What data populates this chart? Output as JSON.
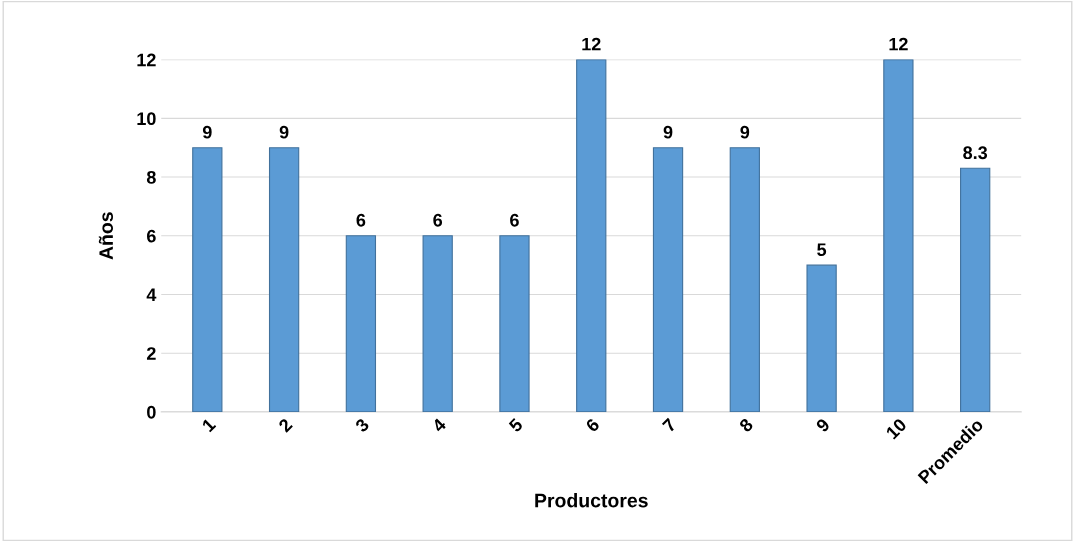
{
  "chart_data": {
    "type": "bar",
    "xlabel": "Productores",
    "ylabel": "Años",
    "categories": [
      "1",
      "2",
      "3",
      "4",
      "5",
      "6",
      "7",
      "8",
      "9",
      "10",
      "Promedio"
    ],
    "values": [
      9,
      9,
      6,
      6,
      6,
      12,
      9,
      9,
      5,
      12,
      8.3
    ],
    "color": "#5b9bd5",
    "ylim": [
      0,
      12
    ],
    "yticks": [
      0,
      2,
      4,
      6,
      8,
      10,
      12
    ],
    "grid": "y",
    "data_labels": true
  }
}
